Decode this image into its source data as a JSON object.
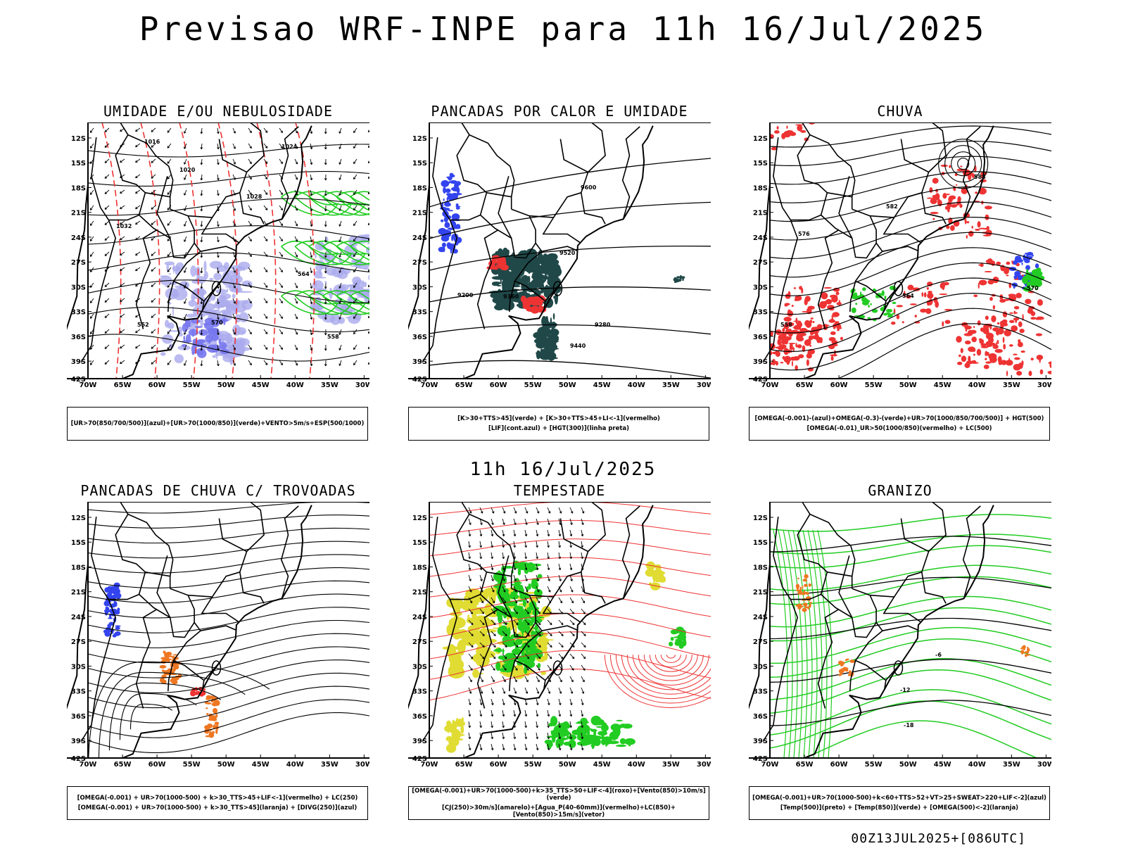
{
  "title": "Previsao WRF-INPE  para 11h 16/Jul/2025",
  "mid_time": "11h 16/Jul/2025",
  "footer": "00Z13JUL2025+[086UTC]",
  "axes": {
    "lat_labels": [
      "12S",
      "15S",
      "18S",
      "21S",
      "24S",
      "27S",
      "30S",
      "33S",
      "36S",
      "39S",
      "42S"
    ],
    "lon_labels": [
      "70W",
      "65W",
      "60W",
      "55W",
      "50W",
      "45W",
      "40W",
      "35W",
      "30W"
    ]
  },
  "colors": {
    "blue": "#3344ee",
    "lavender": "#aaaaee",
    "green": "#22cc22",
    "red": "#ee3333",
    "darkteal": "#204848",
    "orange": "#ee7722",
    "yellow": "#e0dc33",
    "contour": "#000000"
  },
  "panels": [
    {
      "id": "umidade",
      "title": "UMIDADE E/OU NEBULOSIDADE",
      "caption": [
        "[UR>70(850/700/500)](azul)+[UR>70(1000/850)](verde)+VENTO>5m/s+ESP(500/1000)"
      ],
      "labels": [
        "1016",
        "1020",
        "1024",
        "1028",
        "1032",
        "570",
        "564",
        "558",
        "552"
      ]
    },
    {
      "id": "pancadas-calor",
      "title": "PANCADAS POR CALOR E UMIDADE",
      "caption": [
        "[K>30+TTS>45](verde) + [K>30+TTS>45+LI<-1](vermelho)",
        "[LIF](cont.azul) + [HGT(300)](linha preta)"
      ],
      "labels": [
        "9600",
        "9520",
        "9440",
        "9360",
        "9280",
        "9200"
      ]
    },
    {
      "id": "chuva",
      "title": "CHUVA",
      "caption": [
        "[OMEGA(-0.001)-(azul)+OMEGA(-0.3)-(verde)+UR>70(1000/850/700/500)] + HGT(500)",
        "[OMEGA(-0.01)_UR>50(1000/850)(vermelho) + LC(500)"
      ],
      "labels": [
        "588",
        "582",
        "576",
        "570",
        "564",
        "558"
      ]
    },
    {
      "id": "trovoadas",
      "title": "PANCADAS DE CHUVA C/ TROVOADAS",
      "caption": [
        "[OMEGA(-0.001) + UR>70(1000-500) + k>30_TTS>45+LIF<-1](vermelho) + LC(250)",
        "[OMEGA(-0.001) + UR>70(1000-500) + k>30_TTS>45](laranja) + [DIVG(250)](azul)"
      ],
      "labels": []
    },
    {
      "id": "tempestade",
      "title": "TEMPESTADE",
      "caption": [
        "[OMEGA(-0.001)+UR>70(1000-500)+k>35_TTS>50+LIF<-4](roxo)+[Vento(850)>10m/s](verde)",
        "[CJ(250)>30m/s](amarelo)+[Agua_P(40-60mm)](vermelho)+LC(850)+[Vento(850)>15m/s](vetor)"
      ],
      "labels": []
    },
    {
      "id": "granizo",
      "title": "GRANIZO",
      "caption": [
        "[OMEGA(-0.001)+UR>70(1000-500)+k<60+TTS>52+VT>25+SWEAT>220+LIF<-2](azul)",
        "[Temp(500)](preto) + [Temp(850)](verde) + [OMEGA(500)<-2](laranja)"
      ],
      "labels": [
        "-6",
        "-12",
        "-18"
      ]
    }
  ]
}
